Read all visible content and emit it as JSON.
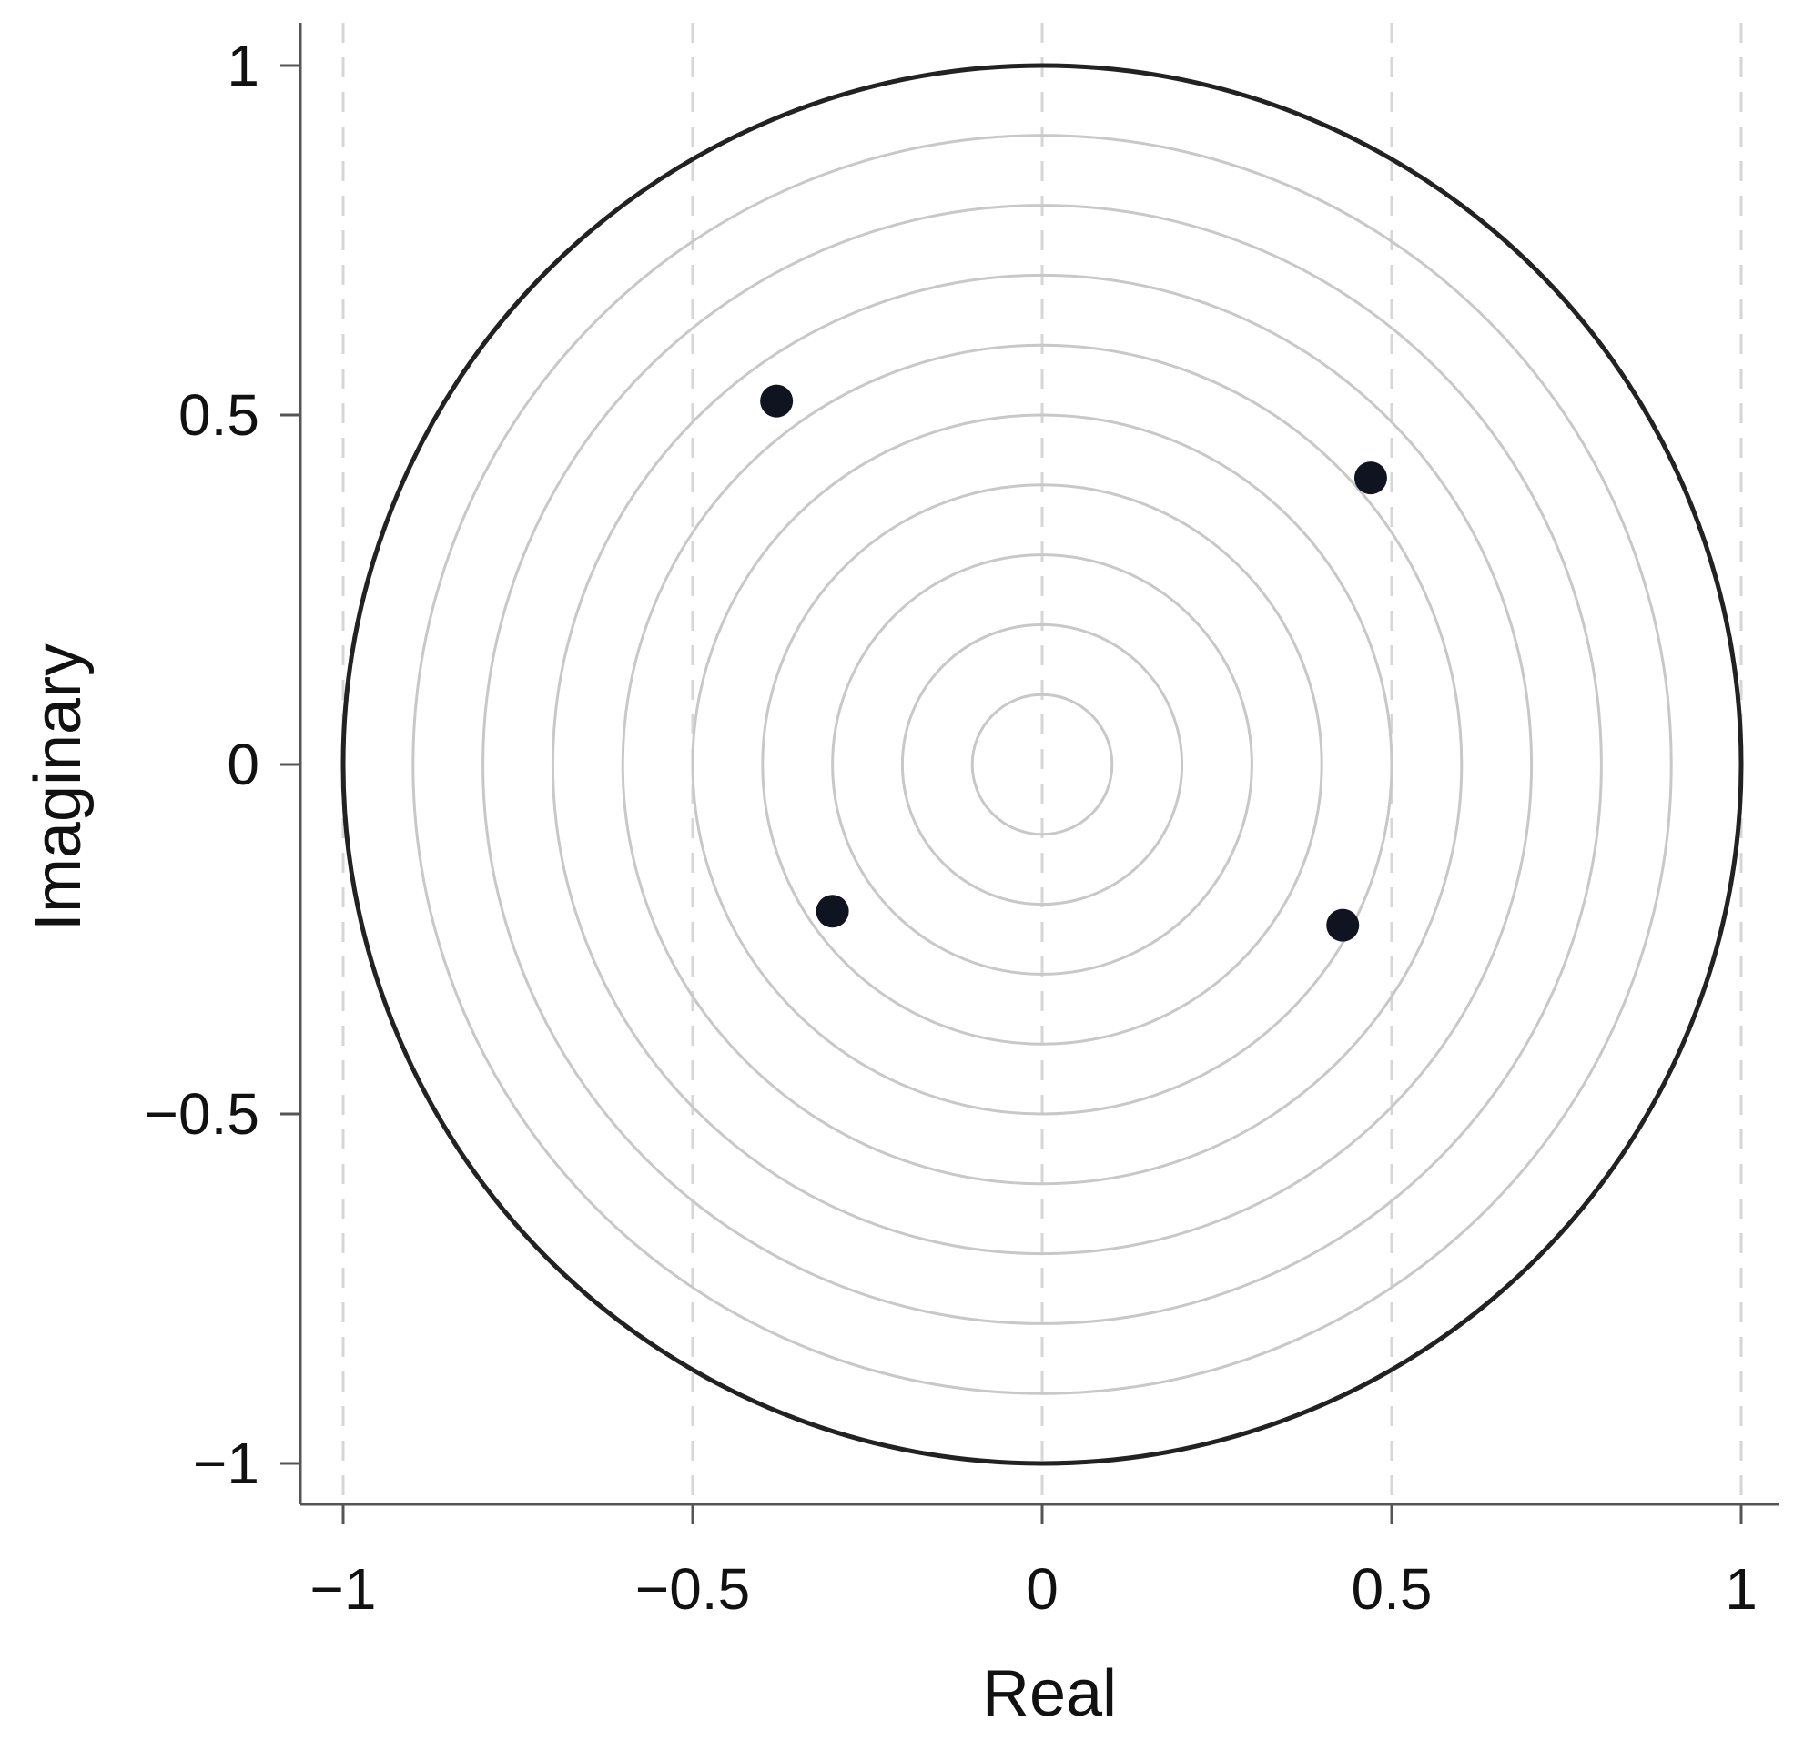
{
  "chart_data": {
    "type": "scatter",
    "title": "",
    "xlabel": "Real",
    "ylabel": "Imaginary",
    "xlim": [
      -1.05,
      1.05
    ],
    "ylim": [
      -1.05,
      1.05
    ],
    "x_ticks": [
      -1,
      -0.5,
      0,
      0.5,
      1
    ],
    "x_tick_labels": [
      "−1",
      "−0.5",
      "0",
      "0.5",
      "1"
    ],
    "y_ticks": [
      1,
      0.5,
      0,
      -0.5,
      -1
    ],
    "y_tick_labels": [
      "1",
      "0.5",
      "0",
      "−0.5",
      "−1"
    ],
    "vertical_gridlines_dashed": [
      -1,
      -0.5,
      0,
      0.5,
      1
    ],
    "unit_circle_radius": 1,
    "concentric_circle_radii": [
      0.1,
      0.2,
      0.3,
      0.4,
      0.5,
      0.6,
      0.7,
      0.8,
      0.9
    ],
    "points": [
      {
        "x": -0.38,
        "y": 0.52
      },
      {
        "x": 0.47,
        "y": 0.41
      },
      {
        "x": -0.3,
        "y": -0.21
      },
      {
        "x": 0.43,
        "y": -0.23
      }
    ],
    "colors": {
      "point": "#0f1420",
      "unit_circle": "#222222",
      "concentric": "#c8c8c8",
      "gridline": "#d6d6d6",
      "axis": "#555555"
    }
  }
}
